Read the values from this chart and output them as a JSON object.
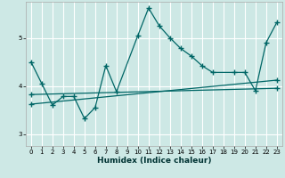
{
  "xlabel": "Humidex (Indice chaleur)",
  "bg_color": "#cde8e5",
  "grid_color": "#ffffff",
  "line_color": "#006666",
  "xlim": [
    -0.5,
    23.5
  ],
  "ylim": [
    2.75,
    5.75
  ],
  "yticks": [
    3,
    4,
    5
  ],
  "xticks": [
    0,
    1,
    2,
    3,
    4,
    5,
    6,
    7,
    8,
    9,
    10,
    11,
    12,
    13,
    14,
    15,
    16,
    17,
    18,
    19,
    20,
    21,
    22,
    23
  ],
  "series1_x": [
    0,
    1,
    2,
    3,
    4,
    5,
    6,
    7,
    8,
    10,
    11,
    12,
    13,
    14,
    15,
    16,
    17,
    19,
    20,
    21,
    22,
    23
  ],
  "series1_y": [
    4.5,
    4.05,
    3.6,
    3.78,
    3.78,
    3.32,
    3.55,
    4.42,
    3.88,
    5.05,
    5.62,
    5.25,
    5.0,
    4.78,
    4.62,
    4.42,
    4.28,
    4.28,
    4.28,
    3.9,
    4.9,
    5.32
  ],
  "series2_x": [
    0,
    23
  ],
  "series2_y": [
    3.62,
    4.12
  ],
  "series3_x": [
    0,
    23
  ],
  "series3_y": [
    3.82,
    3.95
  ],
  "xlabel_fontsize": 6.5,
  "tick_fontsize": 5.0
}
